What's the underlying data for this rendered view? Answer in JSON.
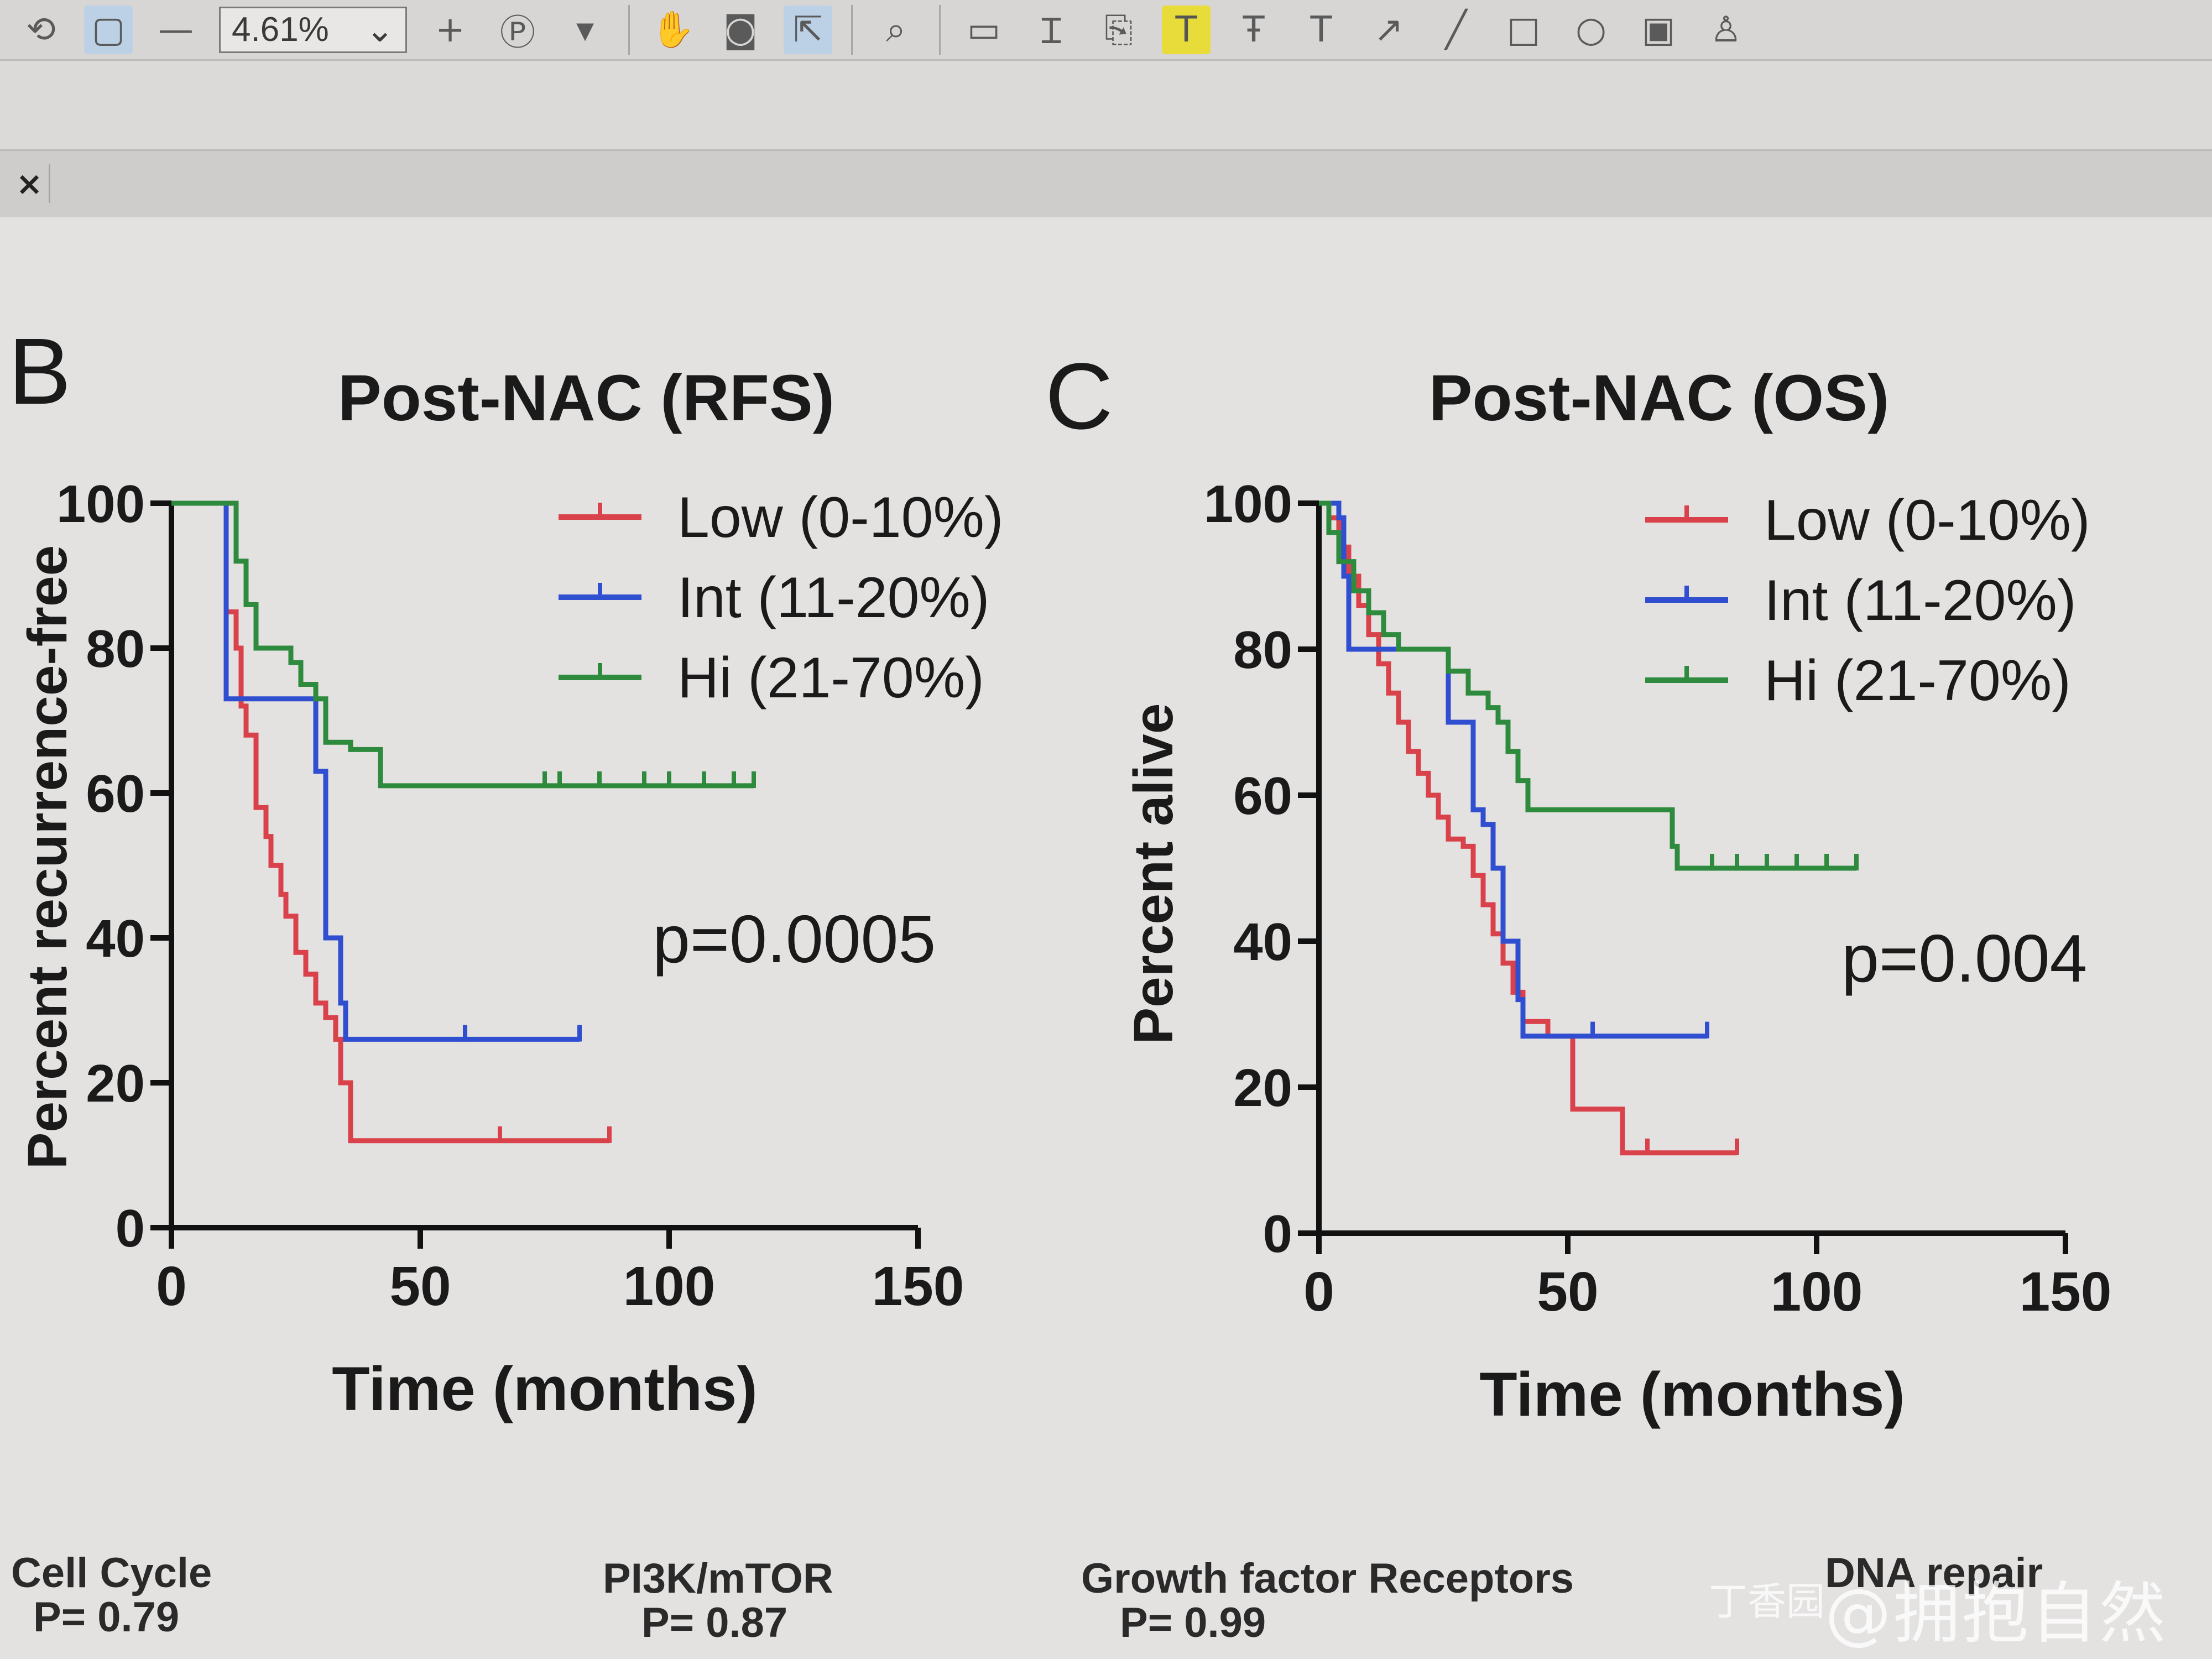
{
  "toolbar": {
    "zoom_value": "4.61%",
    "icons": [
      "rotate-icon",
      "page-icon",
      "minus-icon",
      "plus-icon",
      "pan-mode-icon",
      "dropdown-icon",
      "hand-tool-icon",
      "snapshot-icon",
      "select-tool-icon",
      "search-zoom-icon",
      "comment-icon",
      "text-insert-icon",
      "text-edit-icon",
      "highlight-text-icon",
      "strikethrough-icon",
      "underline-text-icon",
      "arrow-icon",
      "line-icon",
      "rectangle-icon",
      "ellipse-icon",
      "image-icon",
      "stamp-icon"
    ]
  },
  "tab": {
    "close_label": "×"
  },
  "panels": [
    {
      "letter": "B",
      "title": "Post-NAC (RFS)"
    },
    {
      "letter": "C",
      "title": "Post-NAC (OS)"
    }
  ],
  "bottom_labels": [
    {
      "name": "Cell Cycle",
      "p": "P= 0.79"
    },
    {
      "name": "PI3K/mTOR",
      "p": "P= 0.87"
    },
    {
      "name": "Growth factor Receptors",
      "p": "P= 0.99"
    },
    {
      "name": "DNA repair",
      "p": ""
    }
  ],
  "watermark": {
    "text": "@拥抱自然",
    "small": "丁香园"
  },
  "chart_data": [
    {
      "type": "line",
      "title": "Post-NAC (RFS)",
      "xlabel": "Time (months)",
      "ylabel": "Percent recurrence-free",
      "xlim": [
        0,
        150
      ],
      "ylim": [
        0,
        100
      ],
      "xticks": [
        0,
        50,
        100,
        150
      ],
      "yticks": [
        0,
        20,
        40,
        60,
        80,
        100
      ],
      "annotation": "p=0.0005",
      "legend": "top-right",
      "series": [
        {
          "name": "Low (0-10%)",
          "color": "#d9424a",
          "steps": [
            [
              0,
              100
            ],
            [
              11,
              100
            ],
            [
              11,
              85
            ],
            [
              13,
              80
            ],
            [
              14,
              72
            ],
            [
              15,
              68
            ],
            [
              17,
              58
            ],
            [
              19,
              54
            ],
            [
              20,
              50
            ],
            [
              22,
              46
            ],
            [
              23,
              43
            ],
            [
              25,
              38
            ],
            [
              27,
              35
            ],
            [
              29,
              31
            ],
            [
              31,
              29
            ],
            [
              33,
              26
            ],
            [
              34,
              20
            ],
            [
              36,
              12
            ],
            [
              66,
              12
            ],
            [
              88,
              12
            ]
          ],
          "censors": [
            [
              66,
              12
            ],
            [
              88,
              12
            ]
          ]
        },
        {
          "name": "Int (11-20%)",
          "color": "#2f4fd0",
          "steps": [
            [
              0,
              100
            ],
            [
              11,
              100
            ],
            [
              11,
              73
            ],
            [
              27,
              73
            ],
            [
              29,
              63
            ],
            [
              31,
              40
            ],
            [
              33,
              40
            ],
            [
              34,
              31
            ],
            [
              35,
              26
            ],
            [
              82,
              26
            ]
          ],
          "censors": [
            [
              59,
              26
            ],
            [
              82,
              26
            ]
          ]
        },
        {
          "name": "Hi (21-70%)",
          "color": "#2e8b3e",
          "steps": [
            [
              0,
              100
            ],
            [
              12,
              100
            ],
            [
              13,
              92
            ],
            [
              15,
              86
            ],
            [
              17,
              80
            ],
            [
              21,
              80
            ],
            [
              24,
              78
            ],
            [
              26,
              75
            ],
            [
              29,
              73
            ],
            [
              31,
              67
            ],
            [
              36,
              66
            ],
            [
              42,
              61
            ],
            [
              46,
              61
            ],
            [
              117,
              61
            ]
          ],
          "censors": [
            [
              75,
              61
            ],
            [
              78,
              61
            ],
            [
              86,
              61
            ],
            [
              95,
              61
            ],
            [
              100,
              61
            ],
            [
              107,
              61
            ],
            [
              113,
              61
            ],
            [
              117,
              61
            ]
          ]
        }
      ]
    },
    {
      "type": "line",
      "title": "Post-NAC (OS)",
      "xlabel": "Time (months)",
      "ylabel": "Percent alive",
      "xlim": [
        0,
        150
      ],
      "ylim": [
        0,
        100
      ],
      "xticks": [
        0,
        50,
        100,
        150
      ],
      "yticks": [
        0,
        20,
        40,
        60,
        80,
        100
      ],
      "annotation": "p=0.004",
      "legend": "top-right",
      "series": [
        {
          "name": "Low (0-10%)",
          "color": "#d9424a",
          "steps": [
            [
              0,
              100
            ],
            [
              2,
              98
            ],
            [
              4,
              94
            ],
            [
              6,
              90
            ],
            [
              8,
              86
            ],
            [
              10,
              82
            ],
            [
              12,
              78
            ],
            [
              14,
              74
            ],
            [
              16,
              70
            ],
            [
              18,
              66
            ],
            [
              20,
              63
            ],
            [
              22,
              60
            ],
            [
              24,
              57
            ],
            [
              26,
              54
            ],
            [
              29,
              53
            ],
            [
              31,
              49
            ],
            [
              33,
              45
            ],
            [
              35,
              41
            ],
            [
              37,
              37
            ],
            [
              39,
              33
            ],
            [
              41,
              29
            ],
            [
              46,
              27
            ],
            [
              51,
              17
            ],
            [
              58,
              17
            ],
            [
              61,
              11
            ],
            [
              78,
              11
            ],
            [
              84,
              11
            ]
          ],
          "censors": [
            [
              66,
              11
            ],
            [
              84,
              11
            ]
          ]
        },
        {
          "name": "Int (11-20%)",
          "color": "#2f4fd0",
          "steps": [
            [
              0,
              100
            ],
            [
              4,
              98
            ],
            [
              5,
              90
            ],
            [
              6,
              80
            ],
            [
              22,
              80
            ],
            [
              24,
              80
            ],
            [
              26,
              70
            ],
            [
              29,
              70
            ],
            [
              31,
              58
            ],
            [
              33,
              56
            ],
            [
              35,
              50
            ],
            [
              37,
              40
            ],
            [
              39,
              40
            ],
            [
              40,
              32
            ],
            [
              41,
              27
            ],
            [
              78,
              27
            ]
          ],
          "censors": [
            [
              55,
              27
            ],
            [
              78,
              27
            ]
          ]
        },
        {
          "name": "Hi (21-70%)",
          "color": "#2e8b3e",
          "steps": [
            [
              0,
              100
            ],
            [
              2,
              96
            ],
            [
              4,
              92
            ],
            [
              7,
              88
            ],
            [
              10,
              85
            ],
            [
              13,
              82
            ],
            [
              16,
              80
            ],
            [
              22,
              80
            ],
            [
              26,
              77
            ],
            [
              30,
              74
            ],
            [
              34,
              72
            ],
            [
              36,
              70
            ],
            [
              38,
              66
            ],
            [
              40,
              62
            ],
            [
              42,
              58
            ],
            [
              46,
              58
            ],
            [
              62,
              58
            ],
            [
              69,
              58
            ],
            [
              71,
              53
            ],
            [
              72,
              50
            ],
            [
              108,
              50
            ]
          ],
          "censors": [
            [
              79,
              50
            ],
            [
              84,
              50
            ],
            [
              90,
              50
            ],
            [
              96,
              50
            ],
            [
              102,
              50
            ],
            [
              108,
              50
            ]
          ]
        }
      ]
    }
  ]
}
